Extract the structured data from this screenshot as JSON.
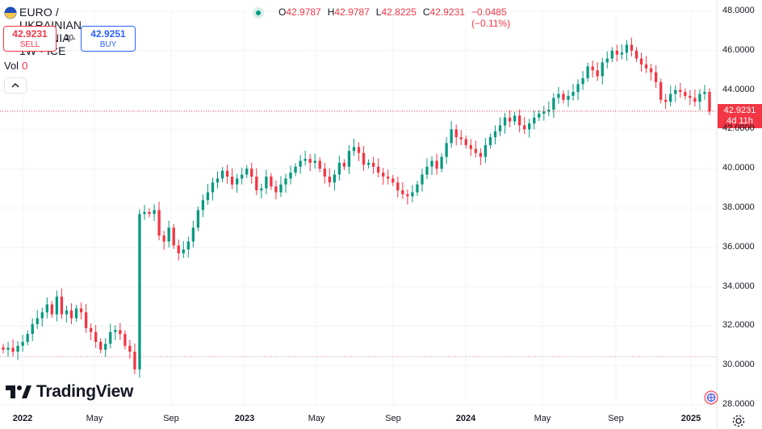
{
  "header": {
    "title": "EURO / UKRAINIAN HRYVNIA · 1W · ICE",
    "ohlc": [
      {
        "k": "O",
        "v": "42.9787"
      },
      {
        "k": "H",
        "v": "42.9787"
      },
      {
        "k": "L",
        "v": "42.8225"
      },
      {
        "k": "C",
        "v": "42.9231"
      },
      {
        "k": "",
        "v": "−0.0485 (−0.11%)"
      }
    ]
  },
  "trade": {
    "sell_price": "42.9231",
    "sell_label": "SELL",
    "spread": "20",
    "buy_price": "42.9251",
    "buy_label": "BUY"
  },
  "volume": {
    "label": "Vol",
    "value": "0"
  },
  "price_label": {
    "price": "42.9231",
    "countdown": "4d 11h"
  },
  "logo": {
    "text": "TradingView"
  },
  "colors": {
    "up": "#089981",
    "down": "#f23645",
    "grid": "#f0f3fa",
    "text": "#131722"
  },
  "icons": [
    "flag-icon",
    "status-dot-icon",
    "chevron-up-icon",
    "tradingview-logo-icon",
    "globe-icon",
    "gear-icon"
  ],
  "chart_data": {
    "type": "candlestick",
    "title": "EURO / UKRAINIAN HRYVNIA",
    "interval": "1W",
    "x_ticks": [
      "2022",
      "May",
      "Sep",
      "2023",
      "May",
      "Sep",
      "2024",
      "May",
      "Sep",
      "2025"
    ],
    "x_ticks_bold": [
      "2022",
      "2023",
      "2024",
      "2025"
    ],
    "y_ticks": [
      "48.0000",
      "46.0000",
      "44.0000",
      "42.0000",
      "40.0000",
      "38.0000",
      "36.0000",
      "34.0000",
      "32.0000",
      "30.0000",
      "28.0000"
    ],
    "ylim": [
      28,
      48
    ],
    "last_price": 42.9231,
    "reference_line": 30.45,
    "weekly_closes": [
      30.8,
      30.9,
      30.7,
      31.0,
      31.2,
      31.6,
      32.1,
      32.4,
      32.7,
      33.1,
      32.6,
      33.5,
      32.6,
      32.8,
      32.4,
      32.9,
      32.7,
      31.9,
      31.7,
      31.2,
      30.8,
      31.1,
      31.7,
      31.8,
      31.6,
      31.0,
      30.7,
      29.8,
      37.7,
      37.8,
      37.7,
      37.9,
      36.6,
      36.3,
      37.0,
      36.1,
      35.7,
      35.9,
      36.3,
      37.0,
      37.9,
      38.4,
      38.8,
      39.3,
      39.5,
      39.9,
      39.6,
      39.2,
      39.5,
      39.7,
      40.0,
      39.6,
      38.9,
      39.0,
      39.6,
      39.1,
      38.8,
      39.2,
      39.5,
      39.8,
      40.1,
      40.4,
      40.5,
      40.3,
      40.4,
      40.0,
      39.6,
      39.3,
      39.7,
      40.3,
      40.1,
      40.9,
      41.1,
      40.8,
      40.2,
      40.3,
      40.1,
      39.8,
      39.6,
      39.5,
      39.3,
      38.9,
      38.7,
      38.6,
      38.8,
      39.2,
      39.7,
      40.1,
      40.4,
      40.0,
      40.6,
      41.3,
      42.0,
      41.6,
      41.5,
      41.2,
      41.0,
      40.8,
      40.6,
      41.2,
      41.6,
      41.9,
      42.2,
      42.6,
      42.4,
      42.7,
      42.2,
      42.0,
      42.3,
      42.6,
      42.8,
      42.9,
      43.0,
      43.6,
      43.8,
      43.5,
      43.7,
      43.9,
      44.3,
      44.6,
      45.2,
      45.0,
      44.7,
      45.4,
      45.6,
      46.0,
      45.8,
      45.9,
      46.3,
      46.0,
      45.6,
      45.3,
      45.1,
      44.9,
      44.4,
      43.5,
      43.4,
      43.8,
      44.0,
      43.9,
      43.7,
      43.6,
      43.4,
      43.8,
      43.9,
      42.9
    ]
  }
}
